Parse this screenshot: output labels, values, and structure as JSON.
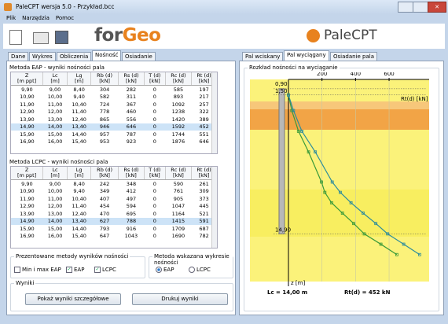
{
  "window": {
    "title": "PaleCPT wersja 5.0 - Przykład.bcc"
  },
  "menu": [
    "Plik",
    "Narzędzia",
    "Pomoc"
  ],
  "toolbar": {
    "brand_for": "for",
    "brand_geo": "Geo",
    "app_name": "PaleCPT"
  },
  "left_tabs": {
    "items": [
      "Dane",
      "Wykres",
      "Obliczenia",
      "Nośność",
      "Osiadanie"
    ],
    "active": 3
  },
  "eap": {
    "title": "Metoda EAP - wyniki nośności pala",
    "headers": [
      [
        "Z",
        "[m ppt]"
      ],
      [
        "Lc",
        "[m]"
      ],
      [
        "Lg",
        "[m]"
      ],
      [
        "Rb (d)",
        "[kN]"
      ],
      [
        "Rs (d)",
        "[kN]"
      ],
      [
        "T (d)",
        "[kN]"
      ],
      [
        "Rc (d)",
        "[kN]"
      ],
      [
        "Rt (d)",
        "[kN]"
      ]
    ],
    "selected_row": 5,
    "rows": [
      [
        "9,90",
        "9,00",
        "8,40",
        "304",
        "282",
        "0",
        "585",
        "197"
      ],
      [
        "10,90",
        "10,00",
        "9,40",
        "582",
        "311",
        "0",
        "893",
        "217"
      ],
      [
        "11,90",
        "11,00",
        "10,40",
        "724",
        "367",
        "0",
        "1092",
        "257"
      ],
      [
        "12,90",
        "12,00",
        "11,40",
        "778",
        "460",
        "0",
        "1238",
        "322"
      ],
      [
        "13,90",
        "13,00",
        "12,40",
        "865",
        "556",
        "0",
        "1420",
        "389"
      ],
      [
        "14,90",
        "14,00",
        "13,40",
        "946",
        "646",
        "0",
        "1592",
        "452"
      ],
      [
        "15,90",
        "15,00",
        "14,40",
        "957",
        "787",
        "0",
        "1744",
        "551"
      ],
      [
        "16,90",
        "16,00",
        "15,40",
        "953",
        "923",
        "0",
        "1876",
        "646"
      ]
    ]
  },
  "lcpc": {
    "title": "Metoda LCPC - wyniki nośności pala",
    "headers": [
      [
        "Z",
        "[m ppt]"
      ],
      [
        "Lc",
        "[m]"
      ],
      [
        "Lg",
        "[m]"
      ],
      [
        "Rb (d)",
        "[kN]"
      ],
      [
        "Rs (d)",
        "[kN]"
      ],
      [
        "T (d)",
        "[kN]"
      ],
      [
        "Rc (d)",
        "[kN]"
      ],
      [
        "Rt (d)",
        "[kN]"
      ]
    ],
    "selected_row": 5,
    "rows": [
      [
        "9,90",
        "9,00",
        "8,40",
        "242",
        "348",
        "0",
        "590",
        "261"
      ],
      [
        "10,90",
        "10,00",
        "9,40",
        "349",
        "412",
        "0",
        "761",
        "309"
      ],
      [
        "11,90",
        "11,00",
        "10,40",
        "407",
        "497",
        "0",
        "905",
        "373"
      ],
      [
        "12,90",
        "12,00",
        "11,40",
        "454",
        "594",
        "0",
        "1047",
        "445"
      ],
      [
        "13,90",
        "13,00",
        "12,40",
        "470",
        "695",
        "0",
        "1164",
        "521"
      ],
      [
        "14,90",
        "14,00",
        "13,40",
        "627",
        "788",
        "0",
        "1415",
        "591"
      ],
      [
        "15,90",
        "15,00",
        "14,40",
        "793",
        "916",
        "0",
        "1709",
        "687"
      ],
      [
        "16,90",
        "16,00",
        "15,40",
        "647",
        "1043",
        "0",
        "1690",
        "782"
      ]
    ]
  },
  "methods": {
    "title": "Prezentowane metody wyników nośności",
    "options": [
      "Min i max EAP",
      "EAP",
      "LCPC"
    ],
    "checked": [
      false,
      true,
      true
    ]
  },
  "chart_method": {
    "title": "Metoda wskazana wykresie nośności",
    "options": [
      "EAP",
      "LCPC"
    ],
    "selected": 0
  },
  "results": {
    "title": "Wyniki",
    "buttons": [
      "Pokaż wyniki szczegółowe",
      "Drukuj wyniki"
    ]
  },
  "right_tabs": {
    "items": [
      "Pal wciskany",
      "Pal wyciągany",
      "Osiadanie pala"
    ],
    "active": 1
  },
  "chart_data": {
    "type": "line",
    "title": "Rozkład nośności na wyciąganie",
    "x_label": "Rt(d) [kN]",
    "y_label": "z [m]",
    "xlim": [
      0,
      820
    ],
    "xticks": [
      200,
      400,
      600
    ],
    "ylim": [
      0,
      19.5
    ],
    "yticks": [
      {
        "value": 0.9,
        "label": "0,90"
      },
      {
        "value": 1.5,
        "label": "1,50"
      },
      {
        "value": 14.9,
        "label": "14,90"
      }
    ],
    "series": [
      {
        "color": "#3a9a3a",
        "depth": [
          1.5,
          3,
          5,
          7,
          9.9,
          10.9,
          11.9,
          12.9,
          13.9,
          14.9,
          15.9,
          16.9
        ],
        "values": [
          0,
          20,
          60,
          120,
          197,
          217,
          257,
          322,
          389,
          452,
          551,
          646
        ]
      },
      {
        "color": "#2d8c9c",
        "depth": [
          1.5,
          3,
          5,
          7,
          9.9,
          10.9,
          11.9,
          12.9,
          13.9,
          14.9,
          15.9,
          16.9
        ],
        "values": [
          0,
          30,
          80,
          160,
          261,
          309,
          373,
          445,
          521,
          591,
          687,
          782
        ]
      }
    ],
    "results": [
      "Lc = 14,00 m",
      "Rt(d) = 452 kN"
    ]
  }
}
